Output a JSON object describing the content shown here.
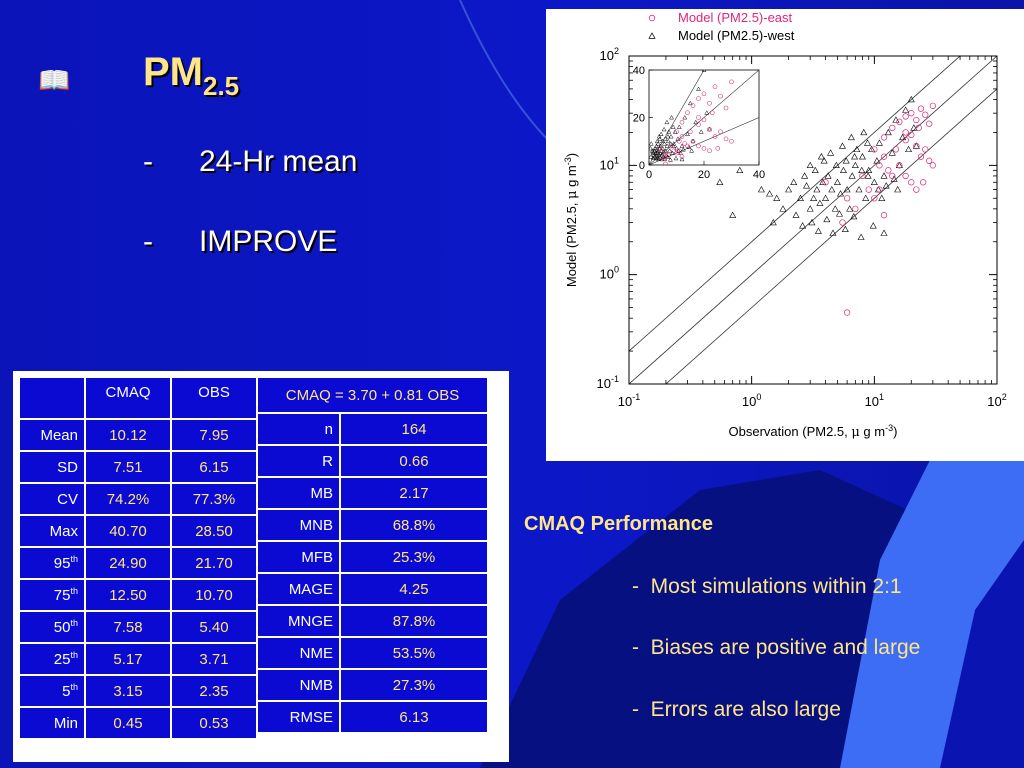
{
  "slide": {
    "book_icon": "book-icon",
    "title_main": "PM",
    "title_sub": "2.5",
    "bullets": [
      {
        "dash": "-",
        "text": "24-Hr mean"
      },
      {
        "dash": "-",
        "text": "IMPROVE"
      }
    ]
  },
  "stats_table": {
    "headers": [
      "CMAQ",
      "OBS"
    ],
    "rows": [
      {
        "label": "Mean",
        "sup": "",
        "cmaq": "10.12",
        "obs": "7.95"
      },
      {
        "label": "SD",
        "sup": "",
        "cmaq": "7.51",
        "obs": "6.15"
      },
      {
        "label": "CV",
        "sup": "",
        "cmaq": "74.2%",
        "obs": "77.3%"
      },
      {
        "label": "Max",
        "sup": "",
        "cmaq": "40.70",
        "obs": "28.50"
      },
      {
        "label": "95",
        "sup": "th",
        "cmaq": "24.90",
        "obs": "21.70"
      },
      {
        "label": "75",
        "sup": "th",
        "cmaq": "12.50",
        "obs": "10.70"
      },
      {
        "label": "50",
        "sup": "th",
        "cmaq": "7.58",
        "obs": "5.40"
      },
      {
        "label": "25",
        "sup": "th",
        "cmaq": "5.17",
        "obs": "3.71"
      },
      {
        "label": "5",
        "sup": "th",
        "cmaq": "3.15",
        "obs": "2.35"
      },
      {
        "label": "Min",
        "sup": "",
        "cmaq": "0.45",
        "obs": "0.53"
      }
    ]
  },
  "metrics_table": {
    "formula": "CMAQ  =  3.70  +  0.81  OBS",
    "rows": [
      {
        "label": "n",
        "value": "164"
      },
      {
        "label": "R",
        "value": "0.66"
      },
      {
        "label": "MB",
        "value": "2.17"
      },
      {
        "label": "MNB",
        "value": "68.8%"
      },
      {
        "label": "MFB",
        "value": "25.3%"
      },
      {
        "label": "MAGE",
        "value": "4.25"
      },
      {
        "label": "MNGE",
        "value": "87.8%"
      },
      {
        "label": "NME",
        "value": "53.5%"
      },
      {
        "label": "NMB",
        "value": "27.3%"
      },
      {
        "label": "RMSE",
        "value": "6.13"
      }
    ]
  },
  "performance": {
    "title": "CMAQ Performance",
    "bullets": [
      {
        "dash": "-",
        "text": "Most simulations within 2:1"
      },
      {
        "dash": "-",
        "text": "Biases are positive and large"
      },
      {
        "dash": "-",
        "text": "Errors are also large"
      }
    ]
  },
  "colors": {
    "background": "#0a14b8",
    "title": "#ffe58a",
    "cell_bg": "#0a0ad2",
    "east_series": "#e0257a",
    "west_series": "#000000",
    "decor_light": "#3d6cf5"
  },
  "chart_data": {
    "type": "scatter",
    "title": "",
    "xlabel": "Observation (PM2.5, µ g m⁻³)",
    "ylabel": "Model (PM2.5, µ g m⁻³)",
    "xlabel_parts": {
      "base": "Observation (PM2.5, ",
      "mu": "μ",
      "mid": " g m",
      "sup": "-3",
      "end": ")"
    },
    "ylabel_parts": {
      "base": "Model (PM2.5, ",
      "mu": "μ",
      "mid": " g m",
      "sup": "-3",
      "end": ")"
    },
    "xscale": "log",
    "yscale": "log",
    "xlim": [
      0.1,
      100
    ],
    "ylim": [
      0.1,
      100
    ],
    "ticks": [
      {
        "base": "10",
        "exp": "-1",
        "value": 0.1
      },
      {
        "base": "10",
        "exp": "0",
        "value": 1
      },
      {
        "base": "10",
        "exp": "1",
        "value": 10
      },
      {
        "base": "10",
        "exp": "2",
        "value": 100
      }
    ],
    "reference_lines": [
      "1:1",
      "2:1",
      "1:2"
    ],
    "legend_placement": "top",
    "series": [
      {
        "name": "Model (PM2.5)-east",
        "marker": "circle",
        "points": [
          [
            16,
            25
          ],
          [
            18,
            28
          ],
          [
            20,
            30
          ],
          [
            22,
            26
          ],
          [
            24,
            33
          ],
          [
            26,
            29
          ],
          [
            28,
            24
          ],
          [
            30,
            35
          ],
          [
            14,
            22
          ],
          [
            12,
            18
          ],
          [
            15,
            14
          ],
          [
            18,
            17
          ],
          [
            20,
            19
          ],
          [
            22,
            15
          ],
          [
            24,
            12
          ],
          [
            26,
            14
          ],
          [
            28,
            11
          ],
          [
            30,
            10
          ],
          [
            10,
            14
          ],
          [
            11,
            10
          ],
          [
            12,
            12
          ],
          [
            13,
            9
          ],
          [
            14,
            8
          ],
          [
            16,
            10
          ],
          [
            18,
            8
          ],
          [
            20,
            7
          ],
          [
            22,
            6
          ],
          [
            25,
            7
          ],
          [
            8,
            8
          ],
          [
            9,
            6
          ],
          [
            10,
            5
          ],
          [
            11,
            6
          ],
          [
            6,
            5
          ],
          [
            7,
            4
          ],
          [
            5.5,
            3
          ],
          [
            12,
            3.5
          ],
          [
            6,
            0.45
          ],
          [
            4,
            7
          ],
          [
            18,
            20
          ],
          [
            23,
            22
          ]
        ]
      },
      {
        "name": "Model (PM2.5)-west",
        "marker": "triangle",
        "points": [
          [
            0.7,
            3.5
          ],
          [
            0.55,
            7
          ],
          [
            0.8,
            9
          ],
          [
            1.2,
            6
          ],
          [
            1.4,
            5.5
          ],
          [
            1.6,
            5
          ],
          [
            2.0,
            6
          ],
          [
            2.2,
            7
          ],
          [
            2.5,
            5
          ],
          [
            2.8,
            6.5
          ],
          [
            3.0,
            4
          ],
          [
            3.2,
            5
          ],
          [
            3.4,
            6
          ],
          [
            3.6,
            4.5
          ],
          [
            3.8,
            7
          ],
          [
            4.0,
            5
          ],
          [
            4.2,
            8
          ],
          [
            4.5,
            6
          ],
          [
            4.8,
            4
          ],
          [
            5.0,
            7
          ],
          [
            5.3,
            5.5
          ],
          [
            5.6,
            9
          ],
          [
            6.0,
            6
          ],
          [
            6.3,
            4
          ],
          [
            6.6,
            8
          ],
          [
            7.0,
            10
          ],
          [
            7.5,
            6
          ],
          [
            8.0,
            12
          ],
          [
            8.5,
            5
          ],
          [
            9.0,
            9
          ],
          [
            9.5,
            14
          ],
          [
            10,
            7
          ],
          [
            10.5,
            11
          ],
          [
            11,
            16
          ],
          [
            12,
            8
          ],
          [
            13,
            20
          ],
          [
            14,
            13
          ],
          [
            15,
            26
          ],
          [
            16,
            10
          ],
          [
            17,
            18
          ],
          [
            18,
            32
          ],
          [
            19,
            14
          ],
          [
            20,
            40
          ],
          [
            21,
            22
          ],
          [
            22,
            15
          ],
          [
            2.3,
            3.5
          ],
          [
            2.6,
            2.8
          ],
          [
            3.1,
            3
          ],
          [
            3.5,
            2.5
          ],
          [
            4.1,
            3.2
          ],
          [
            4.6,
            2.4
          ],
          [
            5.2,
            3.6
          ],
          [
            5.8,
            2.6
          ],
          [
            6.8,
            3.4
          ],
          [
            7.8,
            2.2
          ],
          [
            9.8,
            2.8
          ],
          [
            12,
            2.4
          ],
          [
            3.3,
            9
          ],
          [
            3.9,
            11
          ],
          [
            4.4,
            13
          ],
          [
            5.5,
            15
          ],
          [
            6.5,
            18
          ],
          [
            7.2,
            14
          ],
          [
            8.2,
            20
          ],
          [
            8.8,
            16
          ],
          [
            2.7,
            8
          ],
          [
            3.0,
            10
          ],
          [
            3.7,
            12
          ],
          [
            1.8,
            4
          ],
          [
            1.5,
            3
          ],
          [
            4.9,
            10
          ],
          [
            5.9,
            11
          ],
          [
            6.9,
            12
          ],
          [
            7.9,
            9
          ],
          [
            8.9,
            8
          ],
          [
            10.8,
            6
          ],
          [
            11.5,
            5
          ],
          [
            12.5,
            6.5
          ],
          [
            14.5,
            7.5
          ],
          [
            15.5,
            6
          ]
        ]
      }
    ],
    "inset": {
      "type": "scatter",
      "xscale": "linear",
      "yscale": "linear",
      "xlim": [
        0,
        40
      ],
      "ylim": [
        0,
        40
      ],
      "xticks": [
        0,
        20,
        40
      ],
      "yticks": [
        0,
        20,
        40
      ],
      "reference_lines": [
        "1:1",
        "2:1",
        "1:2"
      ]
    }
  }
}
